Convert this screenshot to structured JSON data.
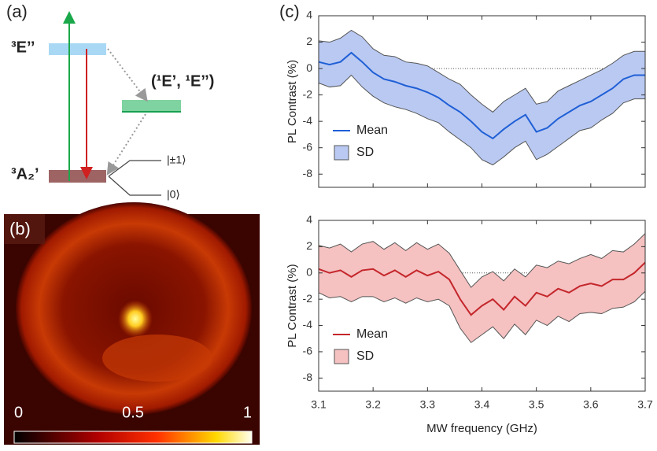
{
  "panels": {
    "a": "(a)",
    "b": "(b)",
    "c": "(c)"
  },
  "diagram": {
    "excited": "³E’’",
    "singlet": "(¹E’, ¹E’’)",
    "ground": "³A₂’",
    "level_pm1": "|±1⟩",
    "level_0": "|0⟩"
  },
  "colorbar": {
    "ticks": [
      0,
      0.5,
      1
    ],
    "lim": [
      0,
      1
    ]
  },
  "chart_data": [
    {
      "type": "line",
      "ylabel": "PL Contrast (%)",
      "x": [
        3.1,
        3.12,
        3.14,
        3.16,
        3.18,
        3.2,
        3.22,
        3.24,
        3.26,
        3.28,
        3.3,
        3.32,
        3.34,
        3.36,
        3.38,
        3.4,
        3.42,
        3.44,
        3.46,
        3.48,
        3.5,
        3.52,
        3.54,
        3.56,
        3.58,
        3.6,
        3.62,
        3.64,
        3.66,
        3.68,
        3.7
      ],
      "xlim": [
        3.1,
        3.7
      ],
      "xticks": [
        3.1,
        3.2,
        3.3,
        3.4,
        3.5,
        3.6,
        3.7
      ],
      "ylim": [
        -9,
        4
      ],
      "yticks": [
        -8,
        -6,
        -4,
        -2,
        0,
        2,
        4
      ],
      "legend": "lower left",
      "series": [
        {
          "name": "Mean",
          "style": "line",
          "color": "#1f5fd6",
          "values": [
            0.5,
            0.3,
            0.5,
            1.2,
            0.5,
            -0.3,
            -0.8,
            -1.0,
            -1.3,
            -1.5,
            -1.8,
            -2.2,
            -2.8,
            -3.3,
            -4.0,
            -4.8,
            -5.3,
            -4.6,
            -4.0,
            -3.5,
            -4.8,
            -4.5,
            -3.8,
            -3.3,
            -2.8,
            -2.5,
            -2.0,
            -1.5,
            -0.8,
            -0.5,
            -0.5
          ]
        },
        {
          "name": "SD",
          "style": "band",
          "color": "#b9c9f2",
          "values": [
            1.6,
            1.7,
            1.8,
            1.7,
            1.9,
            1.8,
            1.8,
            1.9,
            1.8,
            1.9,
            2.0,
            1.9,
            2.0,
            2.1,
            2.0,
            2.1,
            2.0,
            2.1,
            2.0,
            2.0,
            2.1,
            2.0,
            2.1,
            2.0,
            1.9,
            2.0,
            1.9,
            1.9,
            1.8,
            1.8,
            1.8
          ]
        }
      ]
    },
    {
      "type": "line",
      "ylabel": "PL Contrast (%)",
      "xlabel": "MW frequency (GHz)",
      "x": [
        3.1,
        3.12,
        3.14,
        3.16,
        3.18,
        3.2,
        3.22,
        3.24,
        3.26,
        3.28,
        3.3,
        3.32,
        3.34,
        3.36,
        3.38,
        3.4,
        3.42,
        3.44,
        3.46,
        3.48,
        3.5,
        3.52,
        3.54,
        3.56,
        3.58,
        3.6,
        3.62,
        3.64,
        3.66,
        3.68,
        3.7
      ],
      "xlim": [
        3.1,
        3.7
      ],
      "xticks": [
        3.1,
        3.2,
        3.3,
        3.4,
        3.5,
        3.6,
        3.7
      ],
      "ylim": [
        -9,
        4
      ],
      "yticks": [
        -8,
        -6,
        -4,
        -2,
        0,
        2,
        4
      ],
      "legend": "lower left",
      "series": [
        {
          "name": "Mean",
          "style": "line",
          "color": "#c4262b",
          "values": [
            0.3,
            0.0,
            0.2,
            -0.3,
            0.2,
            0.3,
            -0.2,
            0.2,
            -0.3,
            0.2,
            -0.2,
            0.1,
            -0.5,
            -2.0,
            -3.2,
            -2.5,
            -2.0,
            -2.8,
            -1.8,
            -2.5,
            -1.5,
            -1.8,
            -1.2,
            -1.5,
            -1.0,
            -0.8,
            -1.0,
            -0.5,
            -0.5,
            0.0,
            0.8
          ]
        },
        {
          "name": "SD",
          "style": "band",
          "color": "#f5c1c1",
          "values": [
            1.8,
            1.9,
            2.0,
            1.9,
            2.0,
            2.1,
            2.0,
            2.1,
            2.0,
            2.1,
            2.0,
            2.1,
            2.0,
            2.2,
            2.1,
            2.2,
            2.1,
            2.2,
            2.1,
            2.2,
            2.1,
            2.2,
            2.1,
            2.2,
            2.1,
            2.2,
            2.1,
            2.2,
            2.1,
            2.2,
            2.2
          ]
        }
      ]
    }
  ]
}
